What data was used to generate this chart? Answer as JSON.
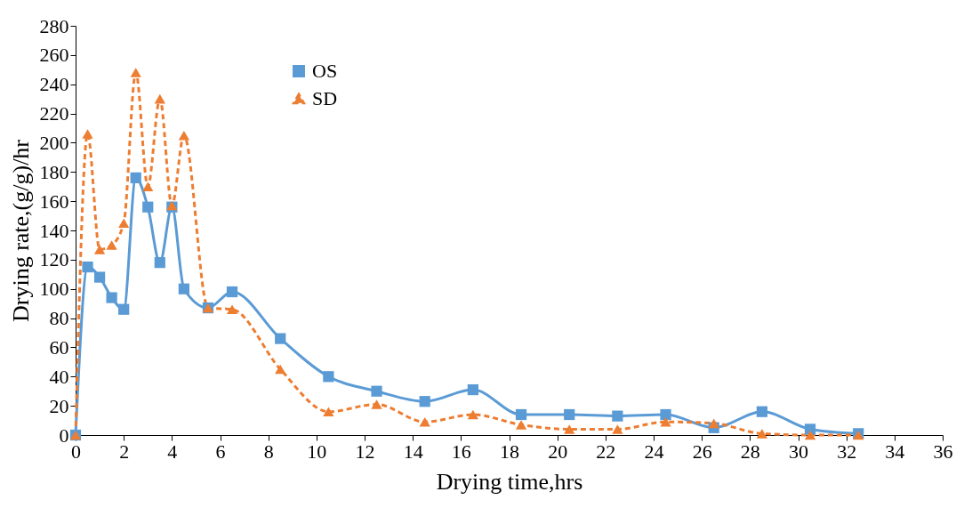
{
  "chart_data": {
    "type": "line",
    "xlabel": "Drying time,hrs",
    "ylabel": "Drying rate,(g/g)/hr",
    "x": [
      0,
      0.5,
      1,
      1.5,
      2,
      2.5,
      3,
      3.5,
      4,
      4.5,
      5.5,
      6.5,
      8.5,
      10.5,
      12.5,
      14.5,
      16.5,
      18.5,
      20.5,
      22.5,
      24.5,
      26.5,
      28.5,
      30.5,
      32.5
    ],
    "series": [
      {
        "name": "OS",
        "color": "#5b9bd5",
        "marker": "square",
        "line_style": "solid",
        "values": [
          0,
          115,
          108,
          94,
          86,
          176,
          156,
          118,
          156,
          100,
          87,
          98,
          66,
          40,
          30,
          23,
          31,
          14,
          14,
          13,
          14,
          5,
          16,
          4,
          1
        ]
      },
      {
        "name": "SD",
        "color": "#ed7d31",
        "marker": "triangle",
        "line_style": "dashed",
        "values": [
          0,
          206,
          127,
          130,
          145,
          248,
          170,
          230,
          157,
          205,
          87,
          86,
          45,
          16,
          21,
          9,
          14,
          7,
          4,
          4,
          9,
          8,
          1,
          0,
          0
        ]
      }
    ],
    "xlim": [
      0,
      36
    ],
    "xticks": [
      0,
      2,
      4,
      6,
      8,
      10,
      12,
      14,
      16,
      18,
      20,
      22,
      24,
      26,
      28,
      30,
      32,
      34,
      36
    ],
    "ylim": [
      0,
      280
    ],
    "yticks": [
      0,
      20,
      40,
      60,
      80,
      100,
      120,
      140,
      160,
      180,
      200,
      220,
      240,
      260,
      280
    ],
    "grid": false,
    "legend": "top left"
  }
}
